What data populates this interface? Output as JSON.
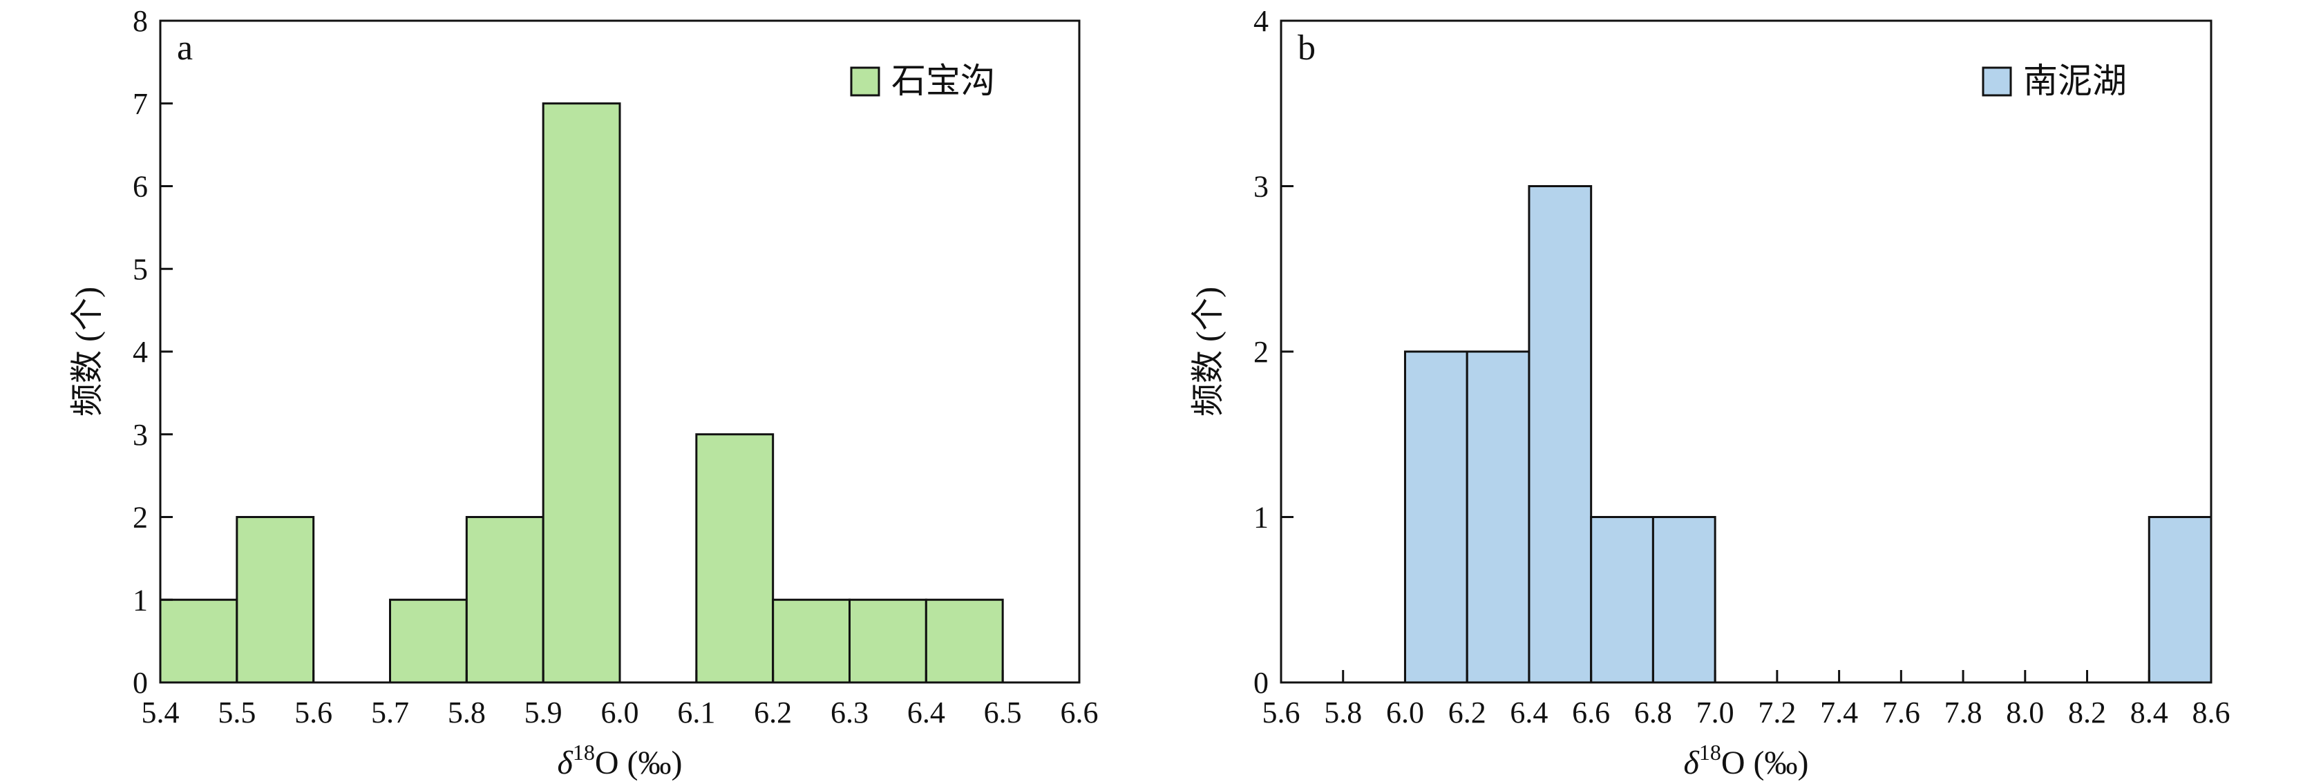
{
  "chart_data": [
    {
      "type": "bar",
      "panel": "a",
      "xlabel": "δ18O (‰)",
      "ylabel": "频数 (个)",
      "xlim": [
        5.4,
        6.6
      ],
      "ylim": [
        0,
        8
      ],
      "xticks": [
        "5.4",
        "5.5",
        "5.6",
        "5.7",
        "5.8",
        "5.9",
        "6.0",
        "6.1",
        "6.2",
        "6.3",
        "6.4",
        "6.5",
        "6.6"
      ],
      "yticks": [
        "0",
        "1",
        "2",
        "3",
        "4",
        "5",
        "6",
        "7",
        "8"
      ],
      "legend": "top-right",
      "grid": false,
      "series": [
        {
          "name": "石宝沟",
          "color": "#b8e4a0",
          "bins": [
            {
              "x0": 5.4,
              "x1": 5.5,
              "count": 1
            },
            {
              "x0": 5.5,
              "x1": 5.6,
              "count": 2
            },
            {
              "x0": 5.6,
              "x1": 5.7,
              "count": 0
            },
            {
              "x0": 5.7,
              "x1": 5.8,
              "count": 1
            },
            {
              "x0": 5.8,
              "x1": 5.9,
              "count": 2
            },
            {
              "x0": 5.9,
              "x1": 6.0,
              "count": 7
            },
            {
              "x0": 6.0,
              "x1": 6.1,
              "count": 0
            },
            {
              "x0": 6.1,
              "x1": 6.2,
              "count": 3
            },
            {
              "x0": 6.2,
              "x1": 6.3,
              "count": 1
            },
            {
              "x0": 6.3,
              "x1": 6.4,
              "count": 1
            },
            {
              "x0": 6.4,
              "x1": 6.5,
              "count": 1
            }
          ]
        }
      ]
    },
    {
      "type": "bar",
      "panel": "b",
      "xlabel": "δ18O (‰)",
      "ylabel": "频数 (个)",
      "xlim": [
        5.6,
        8.6
      ],
      "ylim": [
        0,
        4
      ],
      "xticks": [
        "5.6",
        "5.8",
        "6.0",
        "6.2",
        "6.4",
        "6.6",
        "6.8",
        "7.0",
        "7.2",
        "7.4",
        "7.6",
        "7.8",
        "8.0",
        "8.2",
        "8.4",
        "8.6"
      ],
      "yticks": [
        "0",
        "1",
        "2",
        "3",
        "4"
      ],
      "legend": "top-right",
      "grid": false,
      "series": [
        {
          "name": "南泥湖",
          "color": "#b4d3ec",
          "bins": [
            {
              "x0": 6.0,
              "x1": 6.2,
              "count": 2
            },
            {
              "x0": 6.2,
              "x1": 6.4,
              "count": 2
            },
            {
              "x0": 6.4,
              "x1": 6.6,
              "count": 3
            },
            {
              "x0": 6.6,
              "x1": 6.8,
              "count": 1
            },
            {
              "x0": 6.8,
              "x1": 7.0,
              "count": 1
            },
            {
              "x0": 8.4,
              "x1": 8.6,
              "count": 1
            }
          ]
        }
      ]
    }
  ]
}
